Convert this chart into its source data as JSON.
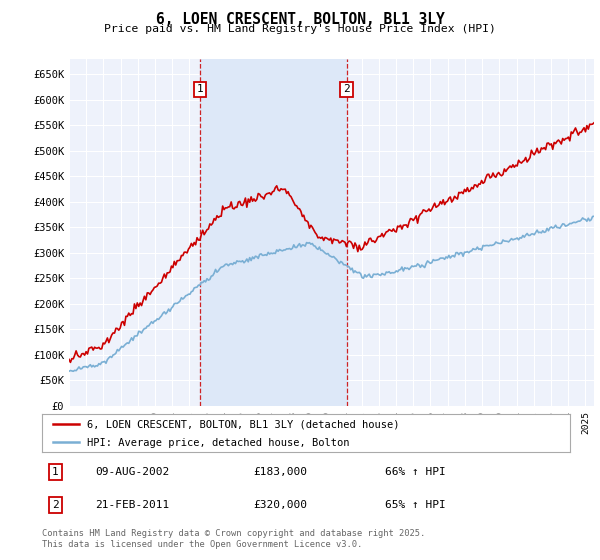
{
  "title": "6, LOEN CRESCENT, BOLTON, BL1 3LY",
  "subtitle": "Price paid vs. HM Land Registry's House Price Index (HPI)",
  "ylim": [
    0,
    680000
  ],
  "yticks": [
    0,
    50000,
    100000,
    150000,
    200000,
    250000,
    300000,
    350000,
    400000,
    450000,
    500000,
    550000,
    600000,
    650000
  ],
  "ytick_labels": [
    "£0",
    "£50K",
    "£100K",
    "£150K",
    "£200K",
    "£250K",
    "£300K",
    "£350K",
    "£400K",
    "£450K",
    "£500K",
    "£550K",
    "£600K",
    "£650K"
  ],
  "xlim_start": 1995.0,
  "xlim_end": 2025.5,
  "background_color": "#ffffff",
  "plot_bg_color": "#eef2fb",
  "grid_color": "#ffffff",
  "red_line_color": "#cc0000",
  "blue_line_color": "#7aafd4",
  "vline_color": "#cc0000",
  "shade_color": "#dde8f8",
  "sale1_x": 2002.605,
  "sale1_label": "1",
  "sale1_date": "09-AUG-2002",
  "sale1_price": "£183,000",
  "sale1_hpi": "66% ↑ HPI",
  "sale2_x": 2011.13,
  "sale2_label": "2",
  "sale2_date": "21-FEB-2011",
  "sale2_price": "£320,000",
  "sale2_hpi": "65% ↑ HPI",
  "legend_label1": "6, LOEN CRESCENT, BOLTON, BL1 3LY (detached house)",
  "legend_label2": "HPI: Average price, detached house, Bolton",
  "footer": "Contains HM Land Registry data © Crown copyright and database right 2025.\nThis data is licensed under the Open Government Licence v3.0."
}
